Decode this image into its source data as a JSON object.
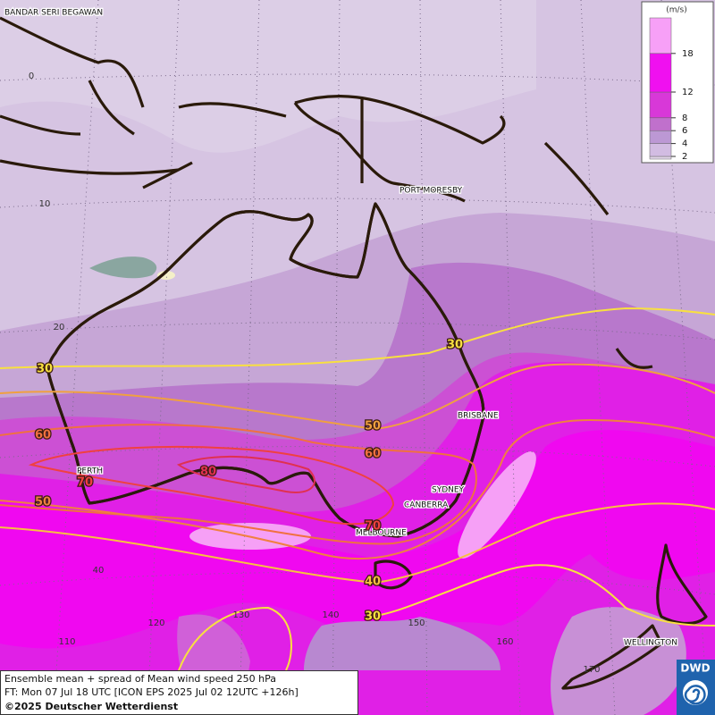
{
  "title": "Ensemble mean + spread of Mean wind speed 250 hPa",
  "forecast_time": "FT: Mon 07 Jul 18 UTC [ICON EPS 2025 Jul 02 12UTC +126h]",
  "copyright": "©2025 Deutscher Wetterdienst",
  "logo": "DWD",
  "legend": {
    "unit": "(m/s)",
    "ticks": [
      2,
      4,
      6,
      8,
      12,
      18
    ],
    "colors": [
      "#e2d6ea",
      "#d2bce2",
      "#bc98d4",
      "#c070cc",
      "#d838d8",
      "#f010f0",
      "#f7a0f7"
    ]
  },
  "places": [
    "BANDAR SERI BEGAWAN",
    "PORT MORESBY",
    "BRISBANE",
    "SYDNEY",
    "CANBERRA",
    "MELBOURNE",
    "PERTH",
    "WELLINGTON"
  ],
  "grid_labels": {
    "latitudes": [
      0,
      10,
      20,
      40
    ],
    "longitudes": [
      110,
      120,
      130,
      140,
      150,
      160,
      170
    ]
  },
  "contour_labels": [
    30,
    30,
    50,
    60,
    60,
    70,
    80,
    50,
    70,
    40,
    30
  ]
}
